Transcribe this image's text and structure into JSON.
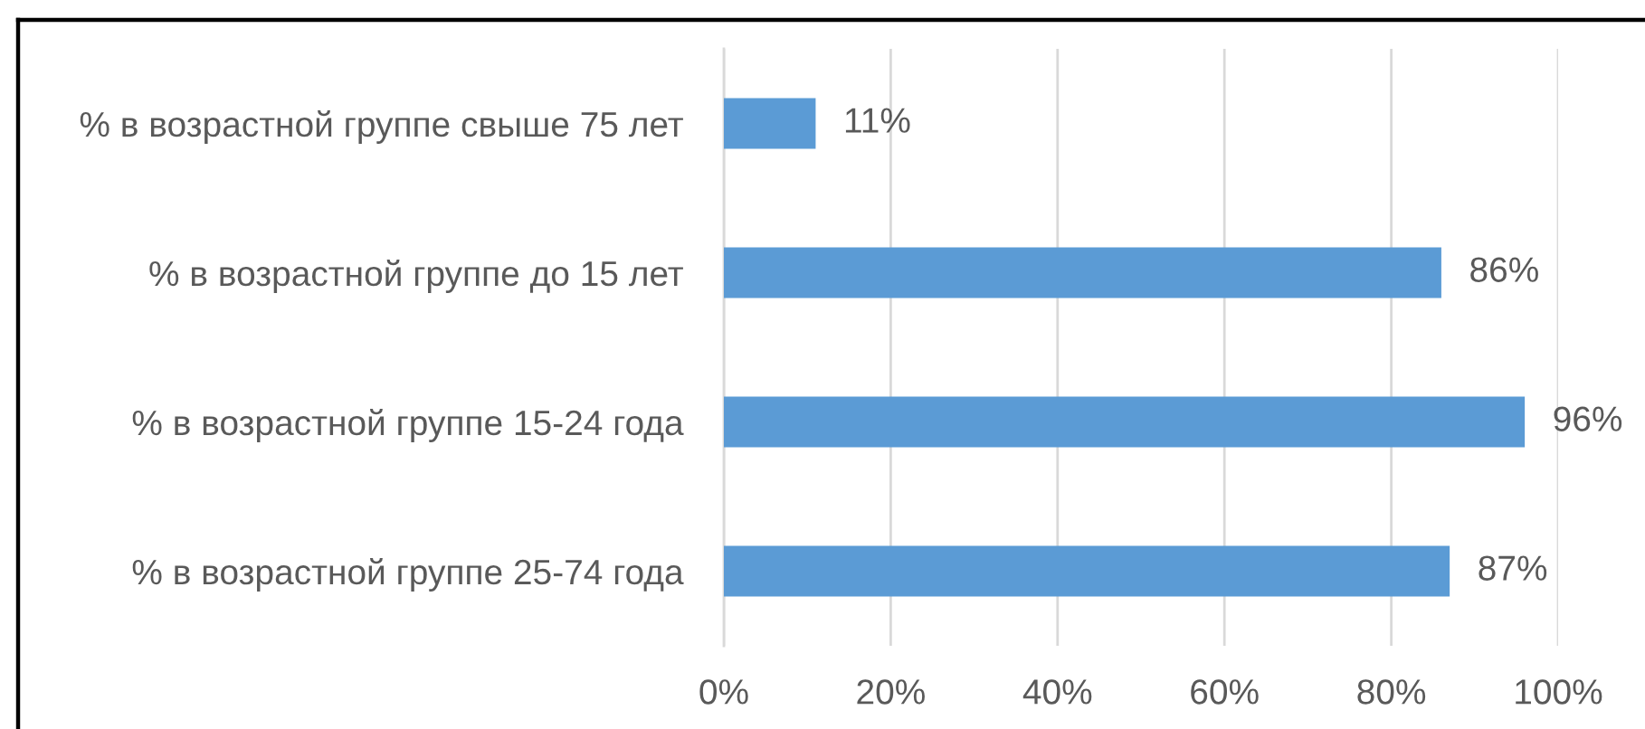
{
  "chart_data": {
    "type": "bar",
    "orientation": "horizontal",
    "categories": [
      "% в возрастной группе свыше 75 лет",
      "% в возрастной группе до 15 лет",
      "% в возрастной группе 15-24 года",
      "% в возрастной группе 25-74 года"
    ],
    "values": [
      11,
      86,
      96,
      87
    ],
    "color": "#5b9bd5",
    "value_labels": [
      "11%",
      "86%",
      "96%",
      "87%"
    ],
    "xlim": [
      0,
      100
    ],
    "xticks": [
      {
        "value": 0,
        "label": "0%"
      },
      {
        "value": 20,
        "label": "20%"
      },
      {
        "value": 40,
        "label": "40%"
      },
      {
        "value": 60,
        "label": "60%"
      },
      {
        "value": 80,
        "label": "80%"
      },
      {
        "value": 100,
        "label": "100%"
      }
    ],
    "grid": "x",
    "legend": false
  }
}
